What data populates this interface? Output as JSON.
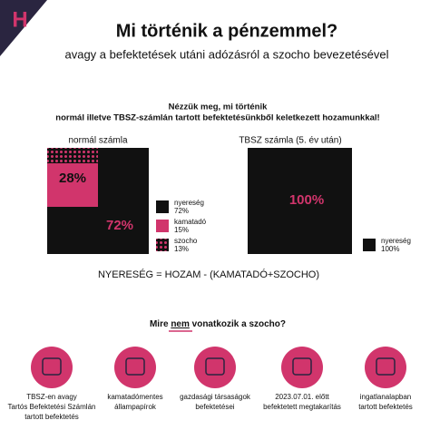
{
  "header": {
    "logo": "H",
    "title": "Mi történik a pénzemmel?",
    "subtitle": "avagy a befektetések utáni adózásról a szocho bevezetésével"
  },
  "intro": {
    "line1": "Nézzük meg, mi történik",
    "line2": "normál illetve TBSZ-számlán tartott befektetésünkből keletkezett hozamunkkal!"
  },
  "normal": {
    "title": "normál számla",
    "box_top": "28%",
    "box_bottom": "72%",
    "legend": [
      {
        "name": "nyereség",
        "value": "72%"
      },
      {
        "name": "kamatadó",
        "value": "15%"
      },
      {
        "name": "szocho",
        "value": "13%"
      }
    ]
  },
  "tbsz": {
    "title": "TBSZ számla (5. év után)",
    "box": "100%",
    "legend": [
      {
        "name": "nyereség",
        "value": "100%"
      }
    ]
  },
  "formula": "NYERESÉG = HOZAM - (KAMATADÓ+SZOCHO)",
  "question": {
    "before": "Mire ",
    "emph": "nem",
    "after": " vonatkozik a szocho?"
  },
  "items": [
    {
      "lines": [
        "TBSZ-en avagy",
        "Tartós Befektetési Számlán",
        "tartott befektetés"
      ]
    },
    {
      "lines": [
        "kamatadómentes",
        "állampapírok"
      ]
    },
    {
      "lines": [
        "gazdasági társaságok",
        "befektetései"
      ]
    },
    {
      "lines": [
        "2023.07.01. előtt",
        "befektetett megtakarítás"
      ]
    },
    {
      "lines": [
        "ingatlanalapban",
        "tartott befektetés"
      ]
    }
  ]
}
